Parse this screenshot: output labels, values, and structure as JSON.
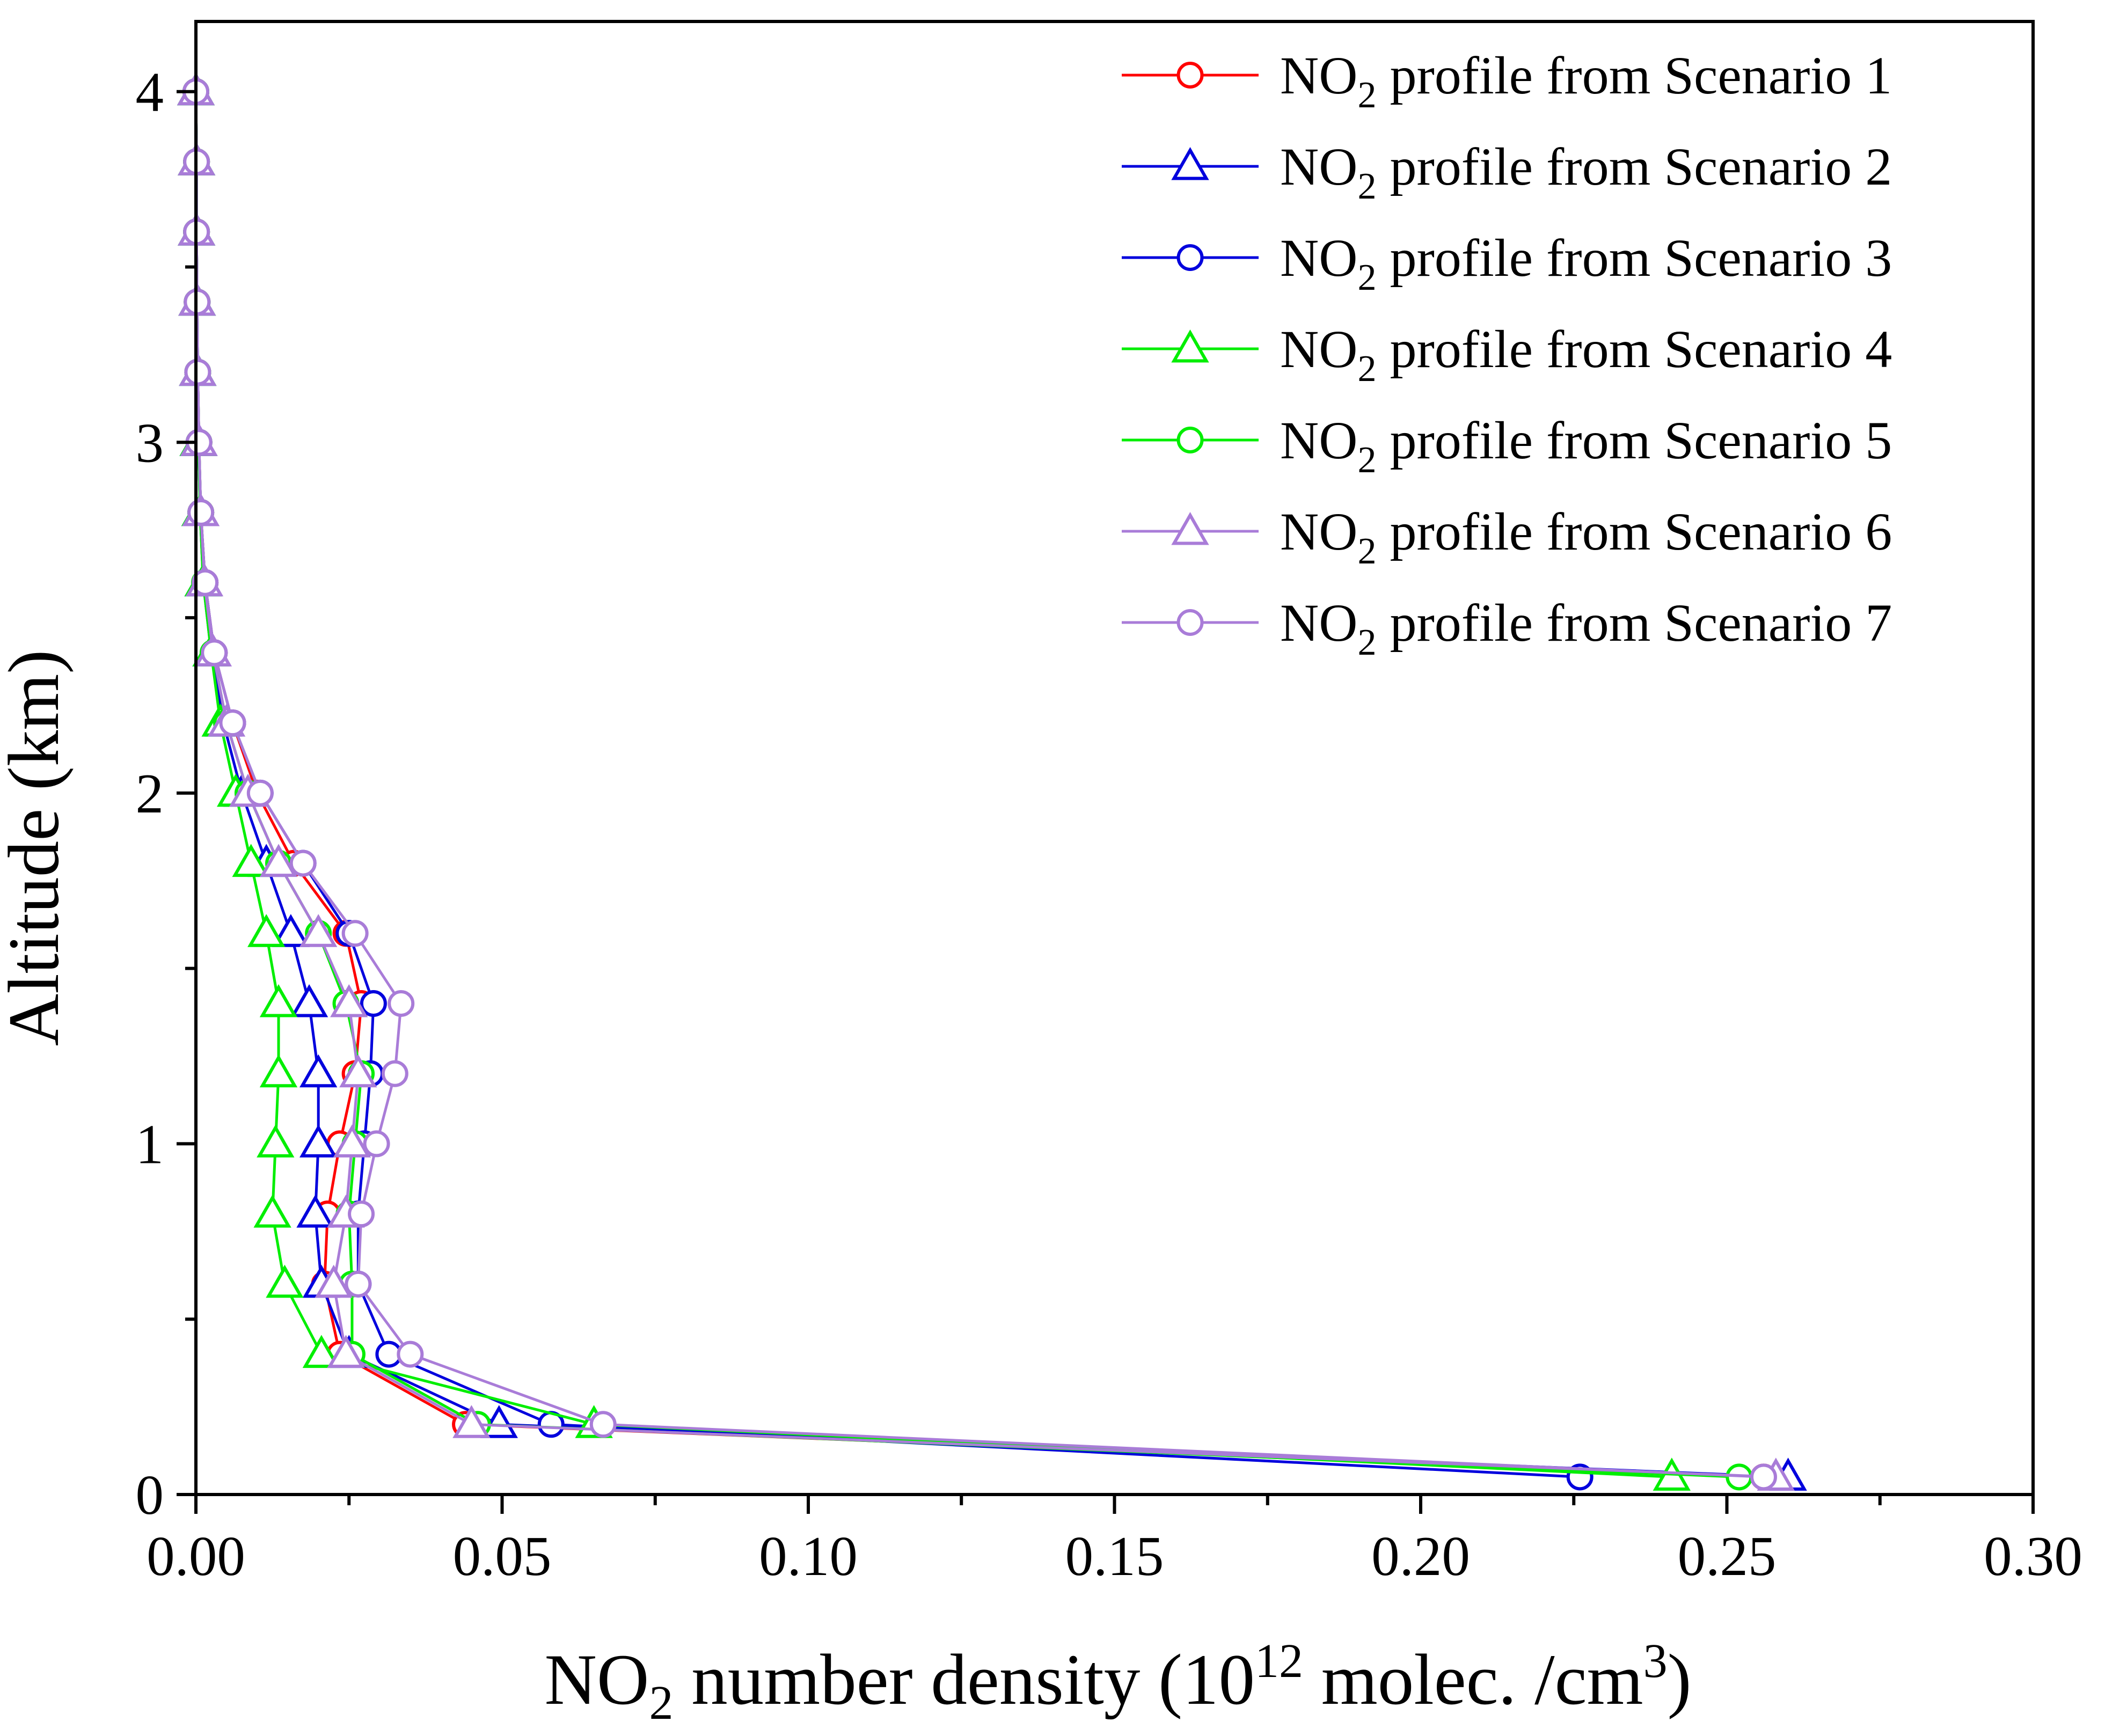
{
  "chart_data": {
    "type": "line",
    "title": "",
    "xlabel_prefix": "NO",
    "xlabel_sub": "2",
    "xlabel_mid": " number density (10",
    "xlabel_sup1": "12",
    "xlabel_mid2": " molec. /cm",
    "xlabel_sup2": "3",
    "xlabel_suffix": ")",
    "ylabel": "Altitude (km)",
    "xlim": [
      0,
      0.3
    ],
    "ylim": [
      0,
      4.2
    ],
    "x_ticks": [
      0.0,
      0.05,
      0.1,
      0.15,
      0.2,
      0.25,
      0.3
    ],
    "x_tick_labels": [
      "0.00",
      "0.05",
      "0.10",
      "0.15",
      "0.20",
      "0.25",
      "0.30"
    ],
    "y_ticks": [
      0,
      1,
      2,
      3,
      4
    ],
    "y_tick_labels": [
      "0",
      "1",
      "2",
      "3",
      "4"
    ],
    "legend_position": "top-right",
    "altitudes": [
      0.05,
      0.2,
      0.4,
      0.6,
      0.8,
      1.0,
      1.2,
      1.4,
      1.6,
      1.8,
      2.0,
      2.2,
      2.4,
      2.6,
      2.8,
      3.0,
      3.2,
      3.4,
      3.6,
      3.8,
      4.0
    ],
    "series": [
      {
        "legend_prefix": "NO",
        "legend_sub": "2",
        "legend_suffix": " profile from Scenario 1",
        "color": "#ff0000",
        "marker": "circle",
        "values": [
          0.256,
          0.044,
          0.0235,
          0.021,
          0.0215,
          0.0235,
          0.026,
          0.027,
          0.0245,
          0.016,
          0.01,
          0.006,
          0.003,
          0.0015,
          0.0008,
          0.0005,
          0.0003,
          0.0002,
          0.0001,
          0.0001,
          0.0
        ]
      },
      {
        "legend_prefix": "NO",
        "legend_sub": "2",
        "legend_suffix": " profile from Scenario 2",
        "color": "#0000dd",
        "marker": "triangle",
        "values": [
          0.26,
          0.0495,
          0.025,
          0.0205,
          0.0195,
          0.02,
          0.02,
          0.0185,
          0.0155,
          0.0115,
          0.0075,
          0.0045,
          0.0025,
          0.0012,
          0.0007,
          0.0004,
          0.0003,
          0.0002,
          0.0001,
          0.0001,
          0.0
        ]
      },
      {
        "legend_prefix": "NO",
        "legend_sub": "2",
        "legend_suffix": " profile from Scenario 3",
        "color": "#0000dd",
        "marker": "circle",
        "values": [
          0.226,
          0.058,
          0.0315,
          0.0265,
          0.0265,
          0.0275,
          0.0285,
          0.029,
          0.025,
          0.0175,
          0.0105,
          0.006,
          0.003,
          0.0015,
          0.0008,
          0.0005,
          0.0003,
          0.0002,
          0.0001,
          0.0001,
          0.0
        ]
      },
      {
        "legend_prefix": "NO",
        "legend_sub": "2",
        "legend_suffix": " profile from Scenario 4",
        "color": "#00ee00",
        "marker": "triangle",
        "values": [
          0.241,
          0.065,
          0.0205,
          0.0145,
          0.0125,
          0.013,
          0.0135,
          0.0135,
          0.0115,
          0.009,
          0.0065,
          0.004,
          0.0025,
          0.0012,
          0.0007,
          0.0004,
          0.0003,
          0.0002,
          0.0001,
          0.0001,
          0.0
        ]
      },
      {
        "legend_prefix": "NO",
        "legend_sub": "2",
        "legend_suffix": " profile from Scenario 5",
        "color": "#00ee00",
        "marker": "circle",
        "values": [
          0.252,
          0.046,
          0.0255,
          0.0255,
          0.025,
          0.026,
          0.027,
          0.0245,
          0.02,
          0.0135,
          0.0085,
          0.005,
          0.0028,
          0.0014,
          0.0008,
          0.0005,
          0.0003,
          0.0002,
          0.0001,
          0.0001,
          0.0
        ]
      },
      {
        "legend_prefix": "NO",
        "legend_sub": "2",
        "legend_suffix": " profile from Scenario 6",
        "color": "#a97cd8",
        "marker": "triangle",
        "values": [
          0.258,
          0.045,
          0.0245,
          0.0225,
          0.0245,
          0.0255,
          0.0265,
          0.025,
          0.02,
          0.0135,
          0.0085,
          0.005,
          0.0028,
          0.0014,
          0.0008,
          0.0005,
          0.0003,
          0.0002,
          0.0001,
          0.0001,
          0.0
        ]
      },
      {
        "legend_prefix": "NO",
        "legend_sub": "2",
        "legend_suffix": " profile from Scenario 7",
        "color": "#a97cd8",
        "marker": "circle",
        "values": [
          0.256,
          0.0665,
          0.035,
          0.0265,
          0.027,
          0.0295,
          0.0325,
          0.0335,
          0.026,
          0.0175,
          0.0105,
          0.006,
          0.003,
          0.0015,
          0.0008,
          0.0005,
          0.0003,
          0.0002,
          0.0001,
          0.0001,
          0.0
        ]
      }
    ]
  }
}
